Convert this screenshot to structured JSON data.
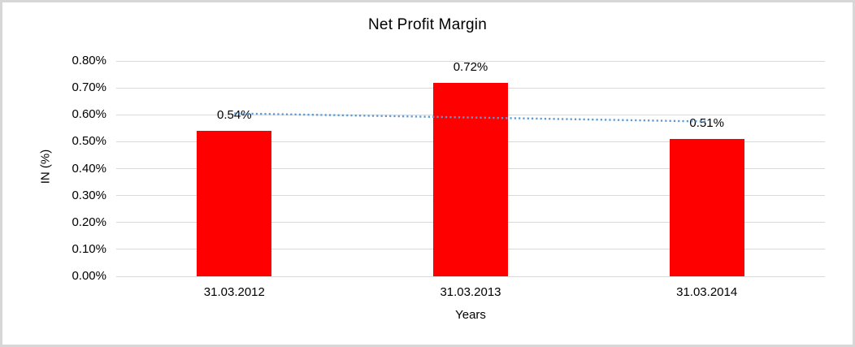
{
  "chart_data": {
    "type": "bar",
    "title": "Net Profit Margin",
    "categories": [
      "31.03.2012",
      "31.03.2013",
      "31.03.2014"
    ],
    "values": [
      0.54,
      0.72,
      0.51
    ],
    "data_labels": [
      "0.54%",
      "0.72%",
      "0.51%"
    ],
    "xlabel": "Years",
    "ylabel": "IN (%)",
    "ylim": [
      0,
      0.8
    ],
    "y_tick_labels": [
      "0.00%",
      "0.10%",
      "0.20%",
      "0.30%",
      "0.40%",
      "0.50%",
      "0.60%",
      "0.70%",
      "0.80%"
    ],
    "y_tick_values": [
      0,
      0.1,
      0.2,
      0.3,
      0.4,
      0.5,
      0.6,
      0.7,
      0.8
    ],
    "grid": true,
    "legend": "none",
    "trendline": {
      "style": "dotted",
      "start_value": 0.605,
      "end_value": 0.575
    },
    "colors": {
      "bar": "#FF0000",
      "trendline": "#5B9BD5",
      "gridline": "#D9D9D9",
      "text": "#000000",
      "frame_border": "#D7D7D7",
      "background": "#FFFFFF"
    }
  }
}
